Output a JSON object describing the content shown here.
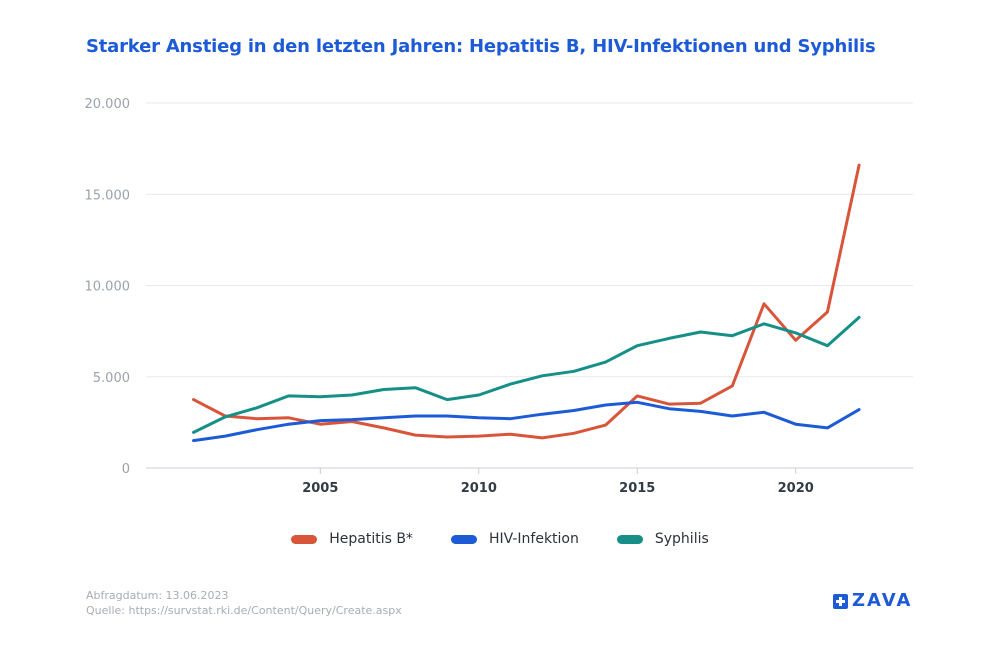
{
  "chart_data": {
    "type": "line",
    "title": "Starker Anstieg in den letzten Jahren: Hepatitis B, HIV-Infektionen und Syphilis",
    "xlabel": "",
    "ylabel": "",
    "x": [
      2001,
      2002,
      2003,
      2004,
      2005,
      2006,
      2007,
      2008,
      2009,
      2010,
      2011,
      2012,
      2013,
      2014,
      2015,
      2016,
      2017,
      2018,
      2019,
      2020,
      2021,
      2022
    ],
    "xlim": [
      1999.5,
      2023.7
    ],
    "ylim": [
      0,
      20000
    ],
    "yticks": [
      0,
      5000,
      10000,
      15000,
      20000
    ],
    "ytick_labels": [
      "0",
      "5.000",
      "10.000",
      "15.000",
      "20.000"
    ],
    "xticks": [
      2005,
      2010,
      2015,
      2020
    ],
    "xtick_labels": [
      "2005",
      "2010",
      "2015",
      "2020"
    ],
    "grid": true,
    "legend_position": "bottom-center",
    "series": [
      {
        "name": "Hepatitis B*",
        "color": "#d9553a",
        "values": [
          3750,
          2850,
          2700,
          2750,
          2400,
          2550,
          2200,
          1800,
          1700,
          1750,
          1850,
          1650,
          1900,
          2350,
          3950,
          3500,
          3550,
          4500,
          9000,
          7000,
          8550,
          16600
        ]
      },
      {
        "name": "HIV-Infektion",
        "color": "#1d5bd6",
        "values": [
          1500,
          1750,
          2100,
          2400,
          2600,
          2650,
          2750,
          2850,
          2850,
          2750,
          2700,
          2950,
          3150,
          3450,
          3600,
          3250,
          3100,
          2850,
          3050,
          2400,
          2200,
          3200
        ]
      },
      {
        "name": "Syphilis",
        "color": "#158f87",
        "values": [
          1950,
          2800,
          3300,
          3950,
          3900,
          4000,
          4300,
          4400,
          3750,
          4000,
          4600,
          5050,
          5300,
          5800,
          6700,
          7100,
          7450,
          7250,
          7900,
          7400,
          6700,
          8250
        ]
      }
    ]
  },
  "footer": {
    "date_line": "Abfragdatum: 13.06.2023",
    "source_line": "Quelle: https://survstat.rki.de/Content/Query/Create.aspx"
  },
  "logo": {
    "text": "ZAVA"
  }
}
